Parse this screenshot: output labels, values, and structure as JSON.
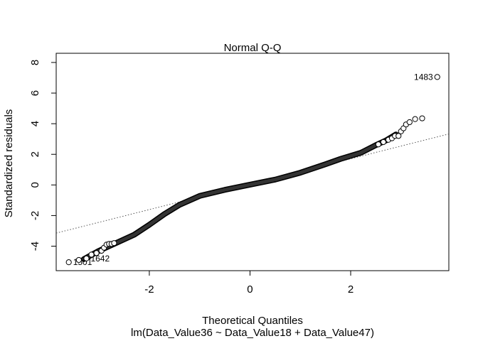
{
  "chart_data": {
    "type": "scatter",
    "title": "Normal Q-Q",
    "xlabel": "Theoretical Quantiles",
    "subtitle": "lm(Data_Value36 ~ Data_Value18 + Data_Value47)",
    "ylabel": "Standardized residuals",
    "xlim": [
      -3.85,
      3.95
    ],
    "ylim": [
      -5.6,
      8.6
    ],
    "xticks": [
      -2,
      0,
      2
    ],
    "yticks": [
      -4,
      -2,
      0,
      2,
      4,
      6,
      8
    ],
    "x_tick_labels": [
      "-2",
      "0",
      "2"
    ],
    "y_tick_labels": [
      "-4",
      "-2",
      "0",
      "2",
      "4",
      "6",
      "8"
    ],
    "grid": false,
    "reference_line": {
      "style": "dotted",
      "slope": 0.83,
      "intercept": 0.05
    },
    "curve_knots": [
      [
        -3.3,
        -4.85
      ],
      [
        -3.0,
        -4.3
      ],
      [
        -2.6,
        -3.7
      ],
      [
        -2.3,
        -3.25
      ],
      [
        -2.0,
        -2.6
      ],
      [
        -1.7,
        -1.9
      ],
      [
        -1.4,
        -1.3
      ],
      [
        -1.0,
        -0.72
      ],
      [
        -0.5,
        -0.32
      ],
      [
        0.0,
        0.02
      ],
      [
        0.5,
        0.35
      ],
      [
        1.0,
        0.8
      ],
      [
        1.5,
        1.35
      ],
      [
        1.8,
        1.7
      ],
      [
        2.2,
        2.1
      ],
      [
        2.5,
        2.6
      ],
      [
        2.7,
        2.9
      ],
      [
        2.9,
        3.3
      ]
    ],
    "highlighted_points": [
      {
        "x": -3.6,
        "y": -5.05,
        "label": "1501"
      },
      {
        "x": -3.4,
        "y": -4.9,
        "label": ""
      },
      {
        "x": -3.25,
        "y": -4.8,
        "label": "1642"
      },
      {
        "x": -3.15,
        "y": -4.55,
        "label": ""
      },
      {
        "x": -3.05,
        "y": -4.45,
        "label": ""
      },
      {
        "x": -2.95,
        "y": -4.3,
        "label": ""
      },
      {
        "x": -2.9,
        "y": -4.1,
        "label": ""
      },
      {
        "x": -2.85,
        "y": -3.9,
        "label": ""
      },
      {
        "x": -2.8,
        "y": -3.85,
        "label": ""
      },
      {
        "x": -2.75,
        "y": -3.85,
        "label": ""
      },
      {
        "x": -2.7,
        "y": -3.8,
        "label": ""
      },
      {
        "x": 2.55,
        "y": 2.65,
        "label": ""
      },
      {
        "x": 2.65,
        "y": 2.8,
        "label": ""
      },
      {
        "x": 2.75,
        "y": 2.95,
        "label": ""
      },
      {
        "x": 2.82,
        "y": 3.05,
        "label": ""
      },
      {
        "x": 2.88,
        "y": 3.2,
        "label": ""
      },
      {
        "x": 2.95,
        "y": 3.2,
        "label": ""
      },
      {
        "x": 3.0,
        "y": 3.5,
        "label": ""
      },
      {
        "x": 3.05,
        "y": 3.7,
        "label": ""
      },
      {
        "x": 3.1,
        "y": 3.95,
        "label": ""
      },
      {
        "x": 3.17,
        "y": 4.1,
        "label": ""
      },
      {
        "x": 3.28,
        "y": 4.3,
        "label": ""
      },
      {
        "x": 3.42,
        "y": 4.35,
        "label": ""
      },
      {
        "x": 3.72,
        "y": 7.05,
        "label": "1483"
      }
    ]
  }
}
